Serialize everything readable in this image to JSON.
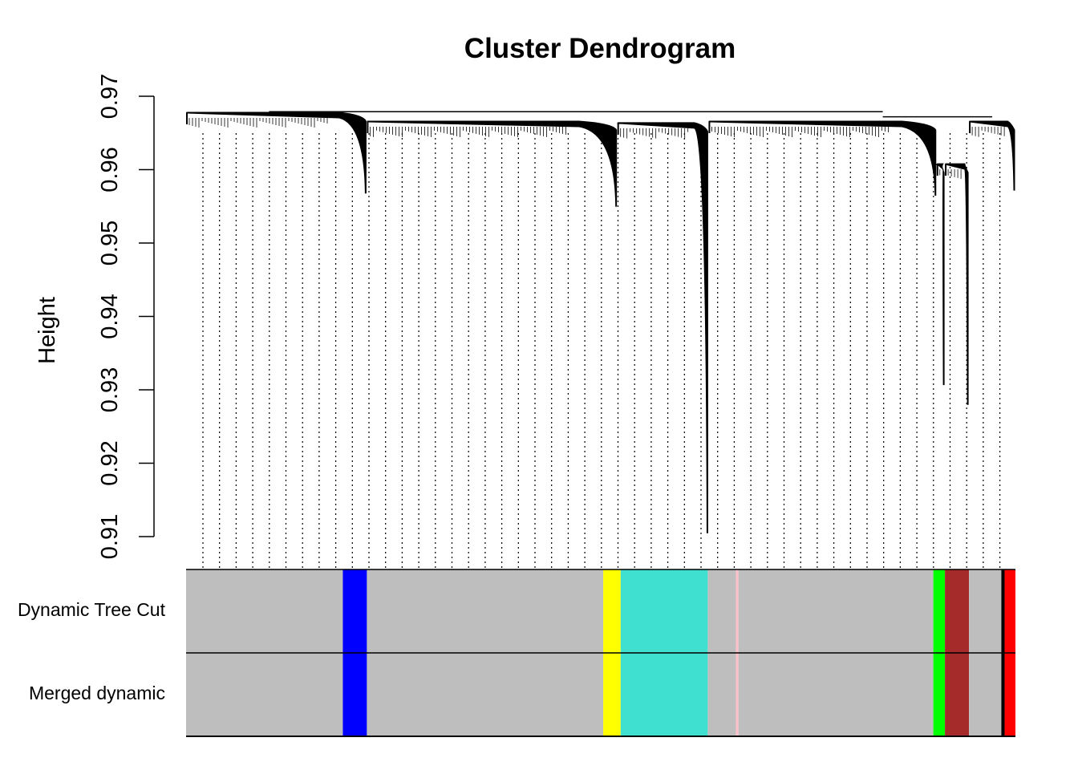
{
  "chart_data": {
    "type": "dendrogram",
    "title": "Cluster Dendrogram",
    "ylabel": "Height",
    "ylim": [
      0.91,
      0.97
    ],
    "yticks": [
      "0.91",
      "0.92",
      "0.93",
      "0.94",
      "0.95",
      "0.96",
      "0.97"
    ],
    "clusters": [
      {
        "x0": 0.0,
        "x1": 0.218,
        "top": 0.9677,
        "bottom": 0.9568
      },
      {
        "x0": 0.218,
        "x1": 0.52,
        "top": 0.9665,
        "bottom": 0.955
      },
      {
        "x0": 0.52,
        "x1": 0.63,
        "top": 0.9663,
        "bottom": 0.9105
      },
      {
        "x0": 0.63,
        "x1": 0.905,
        "top": 0.9665,
        "bottom": 0.9565
      },
      {
        "x0": 0.905,
        "x1": 0.915,
        "top": 0.9607,
        "bottom": 0.9307
      },
      {
        "x0": 0.915,
        "x1": 0.944,
        "top": 0.9607,
        "bottom": 0.928
      },
      {
        "x0": 0.944,
        "x1": 1.0,
        "top": 0.9665,
        "bottom": 0.9572
      }
    ],
    "color_rows": [
      {
        "label": "Dynamic Tree Cut",
        "segments": [
          {
            "from": 0.0,
            "to": 0.189,
            "color": "#bebebe"
          },
          {
            "from": 0.189,
            "to": 0.218,
            "color": "#0000ff"
          },
          {
            "from": 0.218,
            "to": 0.503,
            "color": "#bebebe"
          },
          {
            "from": 0.503,
            "to": 0.524,
            "color": "#ffff00"
          },
          {
            "from": 0.524,
            "to": 0.629,
            "color": "#40e0d0"
          },
          {
            "from": 0.629,
            "to": 0.663,
            "color": "#bebebe"
          },
          {
            "from": 0.663,
            "to": 0.666,
            "color": "#ffc0cb"
          },
          {
            "from": 0.666,
            "to": 0.901,
            "color": "#bebebe"
          },
          {
            "from": 0.901,
            "to": 0.915,
            "color": "#00ff00"
          },
          {
            "from": 0.915,
            "to": 0.944,
            "color": "#a52a2a"
          },
          {
            "from": 0.944,
            "to": 0.983,
            "color": "#bebebe"
          },
          {
            "from": 0.983,
            "to": 0.987,
            "color": "#000000"
          },
          {
            "from": 0.987,
            "to": 1.0,
            "color": "#ff0000"
          }
        ]
      },
      {
        "label": "Merged dynamic",
        "segments": [
          {
            "from": 0.0,
            "to": 0.189,
            "color": "#bebebe"
          },
          {
            "from": 0.189,
            "to": 0.218,
            "color": "#0000ff"
          },
          {
            "from": 0.218,
            "to": 0.503,
            "color": "#bebebe"
          },
          {
            "from": 0.503,
            "to": 0.524,
            "color": "#ffff00"
          },
          {
            "from": 0.524,
            "to": 0.629,
            "color": "#40e0d0"
          },
          {
            "from": 0.629,
            "to": 0.663,
            "color": "#bebebe"
          },
          {
            "from": 0.663,
            "to": 0.666,
            "color": "#ffc0cb"
          },
          {
            "from": 0.666,
            "to": 0.901,
            "color": "#bebebe"
          },
          {
            "from": 0.901,
            "to": 0.915,
            "color": "#00ff00"
          },
          {
            "from": 0.915,
            "to": 0.944,
            "color": "#a52a2a"
          },
          {
            "from": 0.944,
            "to": 0.983,
            "color": "#bebebe"
          },
          {
            "from": 0.983,
            "to": 0.987,
            "color": "#000000"
          },
          {
            "from": 0.987,
            "to": 1.0,
            "color": "#ff0000"
          }
        ]
      }
    ]
  }
}
